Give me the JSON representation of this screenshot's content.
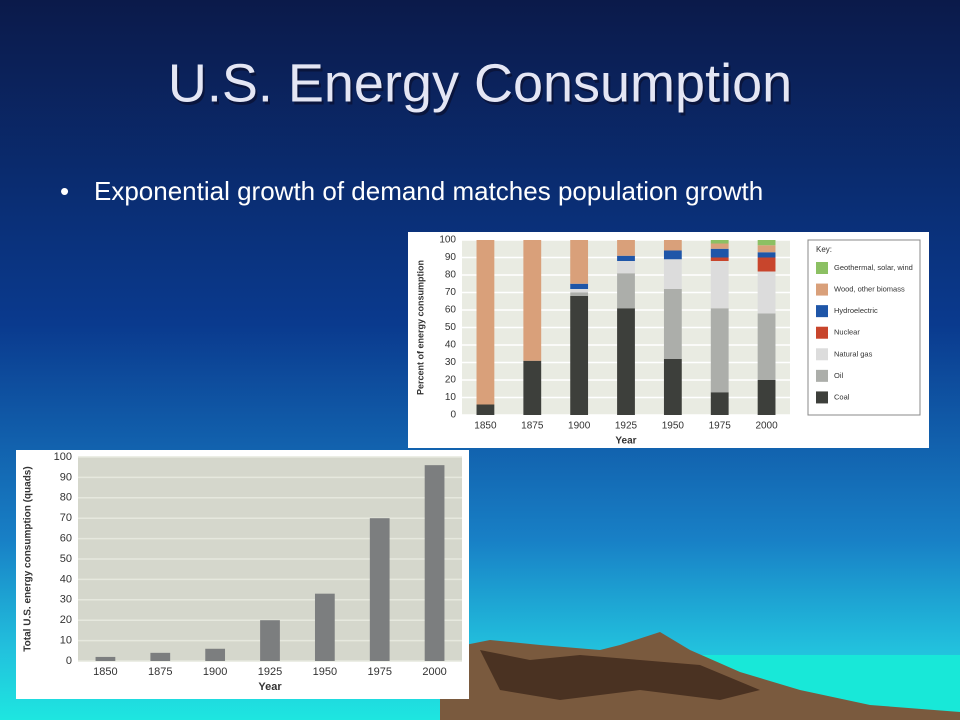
{
  "slide": {
    "title": "U.S. Energy Consumption",
    "bullets": [
      "Exponential growth of demand matches population growth"
    ]
  },
  "chart_data": [
    {
      "type": "stacked_bar",
      "y_label": "Percent of energy consumption",
      "x_label": "Year",
      "categories": [
        "1850",
        "1875",
        "1900",
        "1925",
        "1950",
        "1975",
        "2000"
      ],
      "series": [
        {
          "name": "Coal",
          "color": "#3d3f3b",
          "values": [
            6,
            31,
            68,
            61,
            32,
            13,
            20
          ]
        },
        {
          "name": "Oil",
          "color": "#acaeaa",
          "values": [
            0,
            0,
            2,
            20,
            40,
            48,
            38
          ]
        },
        {
          "name": "Natural gas",
          "color": "#dcdcdc",
          "values": [
            0,
            0,
            2,
            7,
            17,
            27,
            24
          ]
        },
        {
          "name": "Nuclear",
          "color": "#c8452c",
          "values": [
            0,
            0,
            0,
            0,
            0,
            2,
            8
          ]
        },
        {
          "name": "Hydroelectric",
          "color": "#1f56a8",
          "values": [
            0,
            0,
            3,
            3,
            5,
            5,
            3
          ]
        },
        {
          "name": "Wood, other biomass",
          "color": "#d9a07a",
          "values": [
            94,
            69,
            25,
            9,
            6,
            3,
            4
          ]
        },
        {
          "name": "Geothermal, solar, wind",
          "color": "#8cc063",
          "values": [
            0,
            0,
            0,
            0,
            0,
            2,
            3
          ]
        }
      ],
      "ylim": [
        0,
        100
      ],
      "yticks": [
        0,
        10,
        20,
        30,
        40,
        50,
        60,
        70,
        80,
        90,
        100
      ],
      "grid": true,
      "legend": "right",
      "legend_title": "Key:"
    },
    {
      "type": "bar",
      "y_label": "Total U.S. energy consumption (quads)",
      "x_label": "Year",
      "categories": [
        "1850",
        "1875",
        "1900",
        "1925",
        "1950",
        "1975",
        "2000"
      ],
      "values": [
        2,
        4,
        6,
        20,
        33,
        70,
        96
      ],
      "color": "#7c7e7f",
      "ylim": [
        0,
        100
      ],
      "yticks": [
        0,
        10,
        20,
        30,
        40,
        50,
        60,
        70,
        80,
        90,
        100
      ],
      "grid": true
    }
  ]
}
